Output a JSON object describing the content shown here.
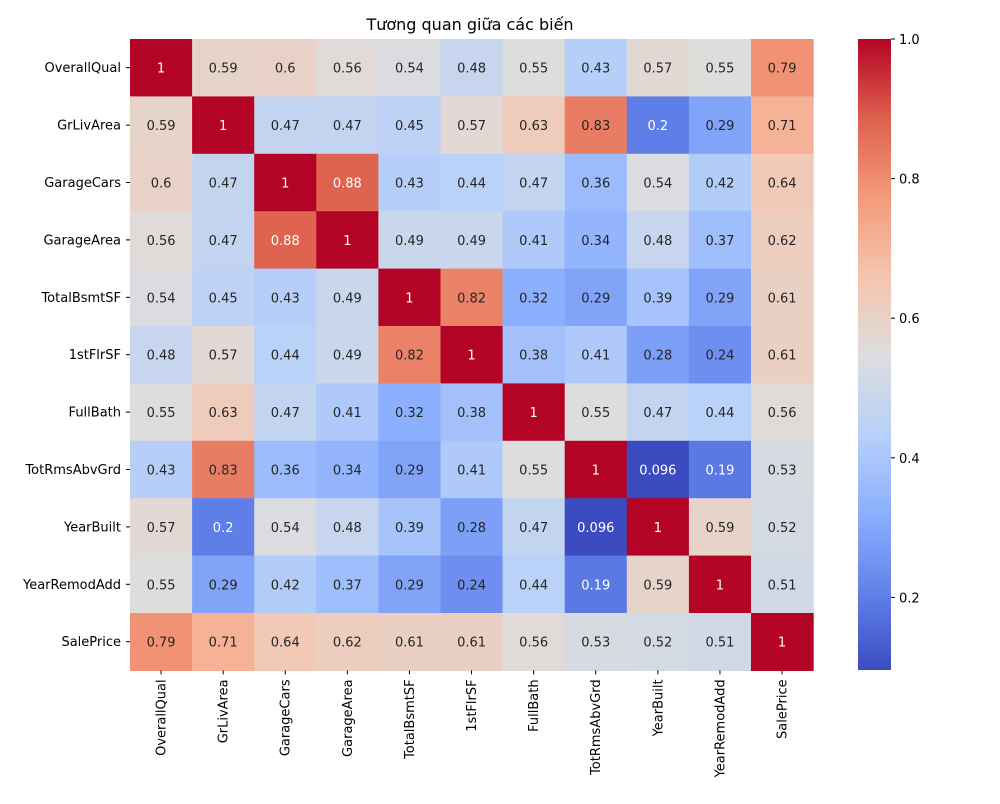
{
  "chart_data": {
    "type": "heatmap",
    "title": "Tương quan giữa các biến",
    "variables": [
      "OverallQual",
      "GrLivArea",
      "GarageCars",
      "GarageArea",
      "TotalBsmtSF",
      "1stFlrSF",
      "FullBath",
      "TotRmsAbvGrd",
      "YearBuilt",
      "YearRemodAdd",
      "SalePrice"
    ],
    "matrix": [
      [
        1,
        0.59,
        0.6,
        0.56,
        0.54,
        0.48,
        0.55,
        0.43,
        0.57,
        0.55,
        0.79
      ],
      [
        0.59,
        1,
        0.47,
        0.47,
        0.45,
        0.57,
        0.63,
        0.83,
        0.2,
        0.29,
        0.71
      ],
      [
        0.6,
        0.47,
        1,
        0.88,
        0.43,
        0.44,
        0.47,
        0.36,
        0.54,
        0.42,
        0.64
      ],
      [
        0.56,
        0.47,
        0.88,
        1,
        0.49,
        0.49,
        0.41,
        0.34,
        0.48,
        0.37,
        0.62
      ],
      [
        0.54,
        0.45,
        0.43,
        0.49,
        1,
        0.82,
        0.32,
        0.29,
        0.39,
        0.29,
        0.61
      ],
      [
        0.48,
        0.57,
        0.44,
        0.49,
        0.82,
        1,
        0.38,
        0.41,
        0.28,
        0.24,
        0.61
      ],
      [
        0.55,
        0.63,
        0.47,
        0.41,
        0.32,
        0.38,
        1,
        0.55,
        0.47,
        0.44,
        0.56
      ],
      [
        0.43,
        0.83,
        0.36,
        0.34,
        0.29,
        0.41,
        0.55,
        1,
        0.096,
        0.19,
        0.53
      ],
      [
        0.57,
        0.2,
        0.54,
        0.48,
        0.39,
        0.28,
        0.47,
        0.096,
        1,
        0.59,
        0.52
      ],
      [
        0.55,
        0.29,
        0.42,
        0.37,
        0.29,
        0.24,
        0.44,
        0.19,
        0.59,
        1,
        0.51
      ],
      [
        0.79,
        0.71,
        0.64,
        0.62,
        0.61,
        0.61,
        0.56,
        0.53,
        0.52,
        0.51,
        1
      ]
    ],
    "colorscale": "coolwarm",
    "vmin": 0.096,
    "vmax": 1.0,
    "colorbar_ticks": [
      "0.2",
      "0.4",
      "0.6",
      "0.8",
      "1.0"
    ],
    "colorbar_tick_values": [
      0.2,
      0.4,
      0.6,
      0.8,
      1.0
    ]
  }
}
